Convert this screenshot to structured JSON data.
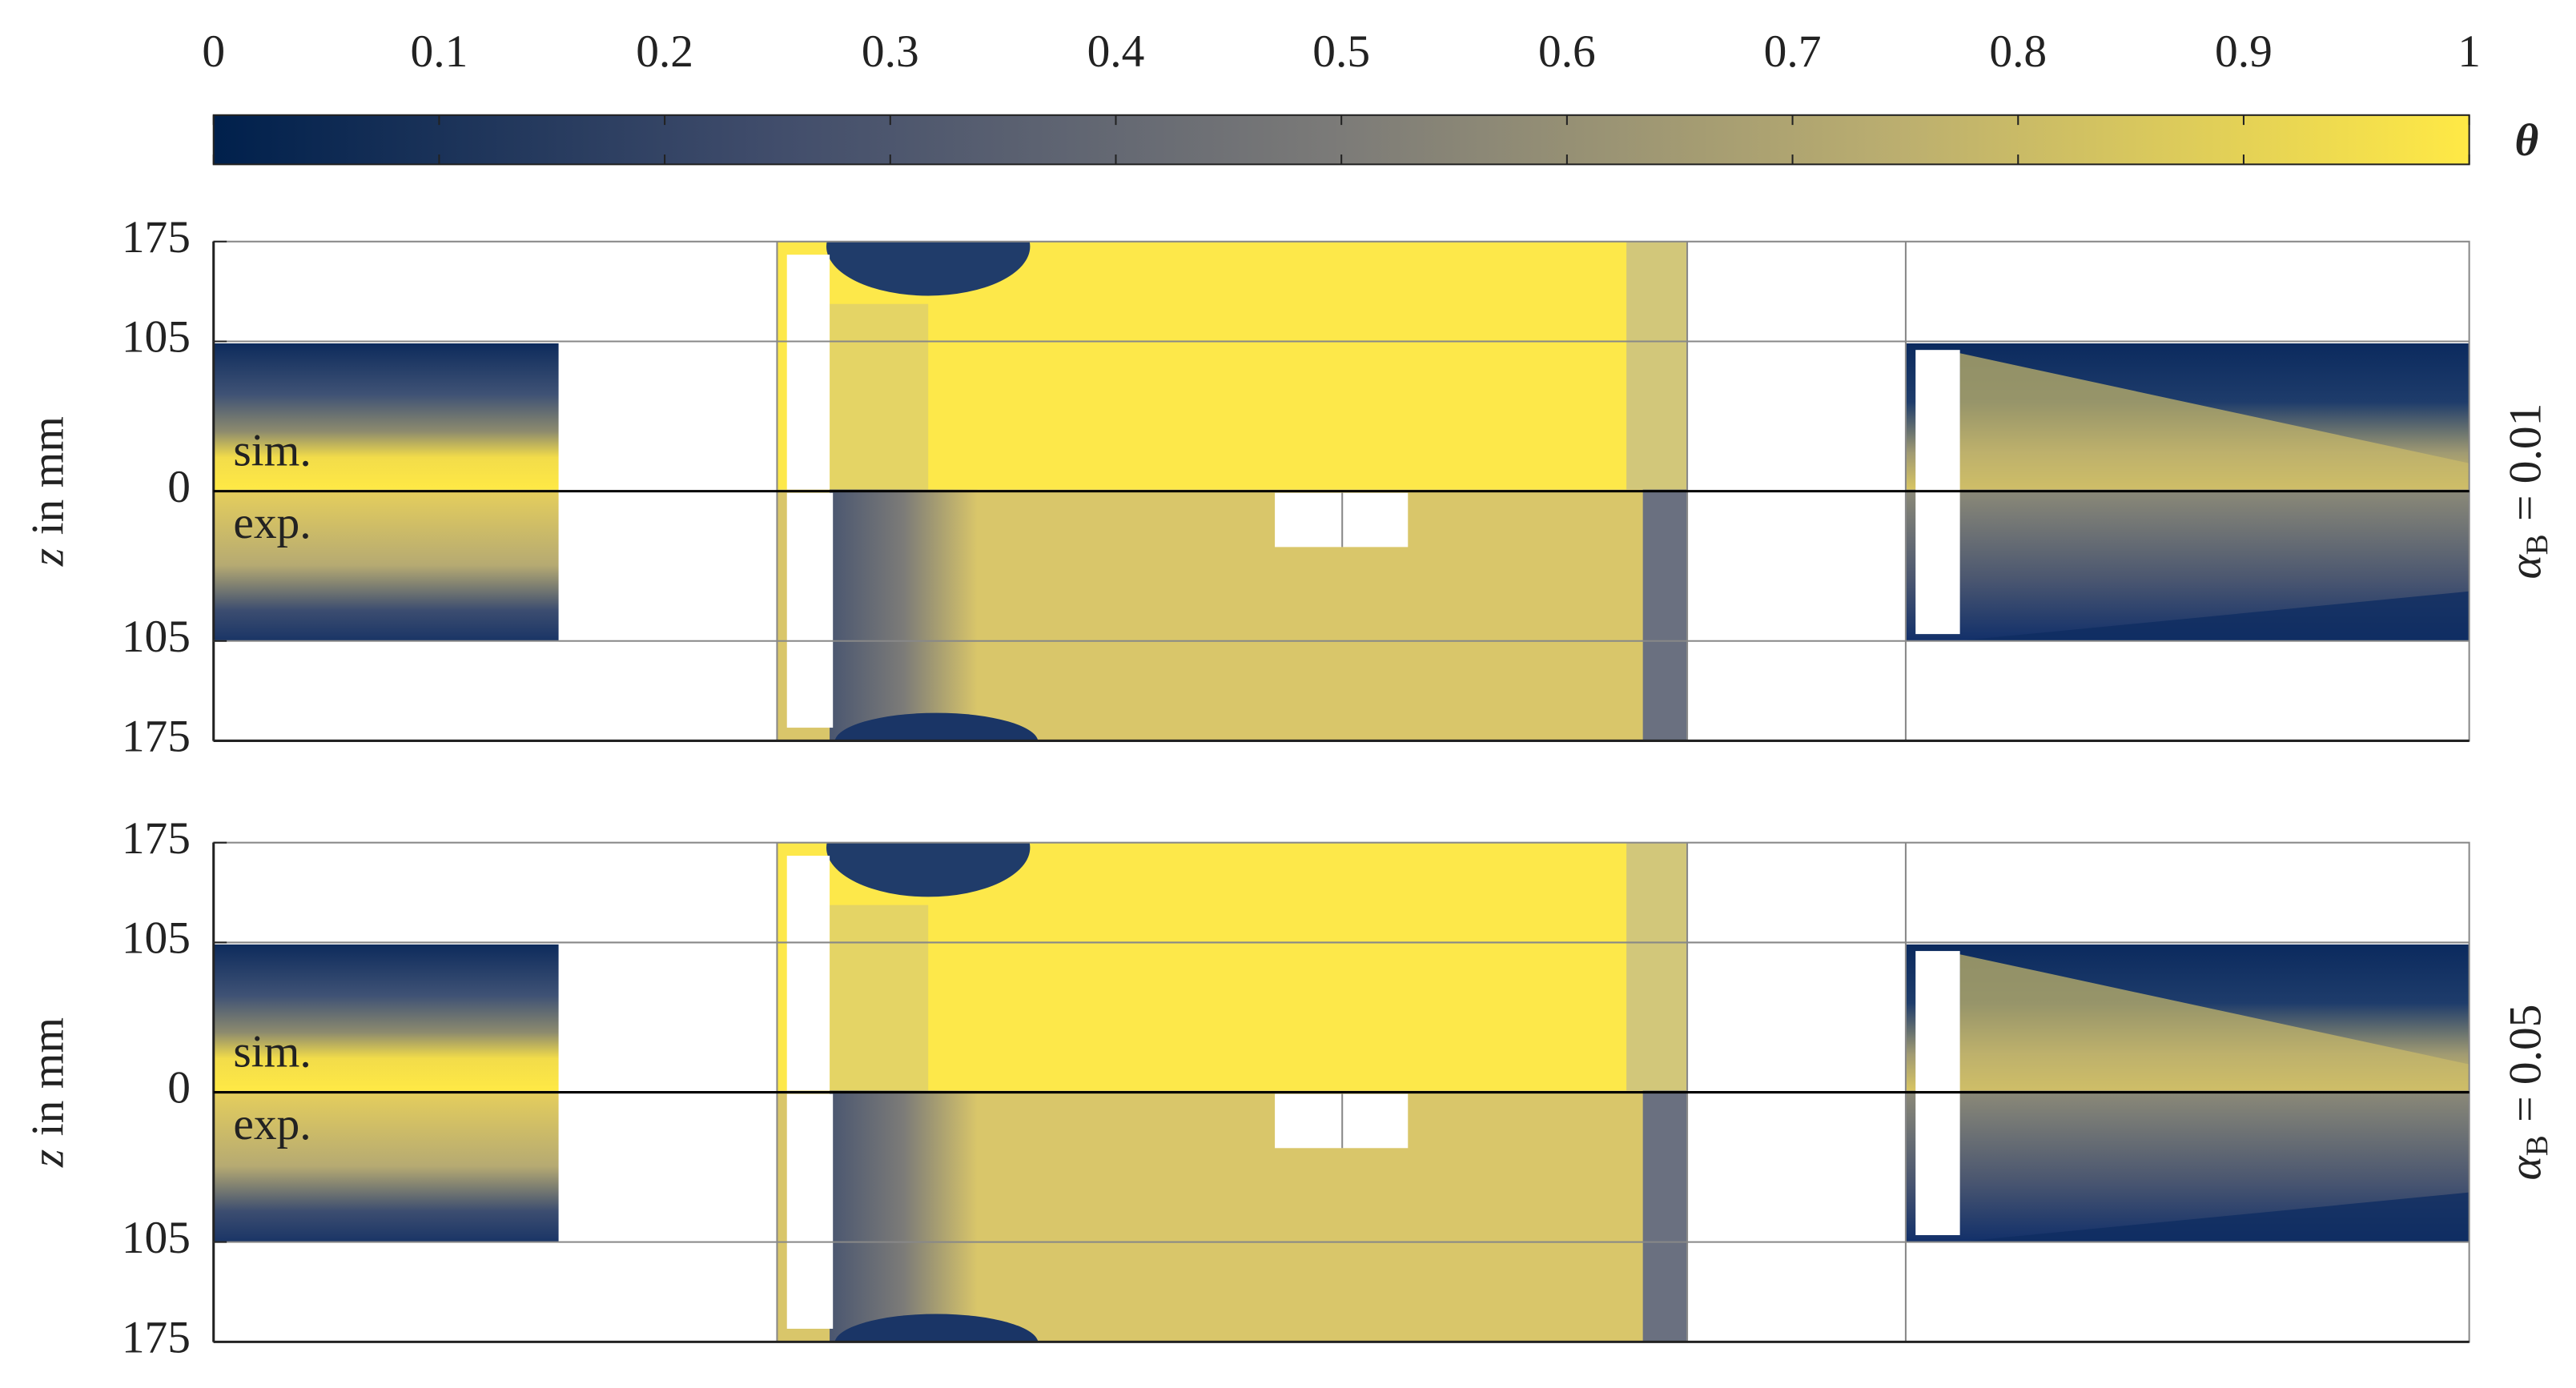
{
  "chart_data": {
    "type": "heatmap",
    "colorbar": {
      "label": "θ",
      "lim": [
        0,
        1
      ],
      "ticks": [
        0,
        0.1,
        0.2,
        0.3,
        0.4,
        0.5,
        0.6,
        0.7,
        0.8,
        0.9,
        1
      ],
      "colormap": [
        "#00204c",
        "#414d6b",
        "#7c7b78",
        "#bcaf6f",
        "#ffe945"
      ]
    },
    "ylabel": {
      "symbol": "z",
      "text": "in mm"
    },
    "ylim": [
      -175,
      175
    ],
    "yticks": [
      175,
      105,
      0,
      {
        "value": -105,
        "label": "105"
      },
      {
        "value": -175,
        "label": "175"
      }
    ],
    "grid_values": [
      105,
      -105
    ],
    "panels": [
      {
        "row_label": {
          "symbol": "α",
          "subscript": "B",
          "text": "= 0.01"
        },
        "annotations": [
          "sim.",
          "exp."
        ]
      },
      {
        "row_label": {
          "symbol": "α",
          "subscript": "B",
          "text": "= 0.05"
        },
        "annotations": [
          "sim.",
          "exp."
        ]
      }
    ]
  }
}
